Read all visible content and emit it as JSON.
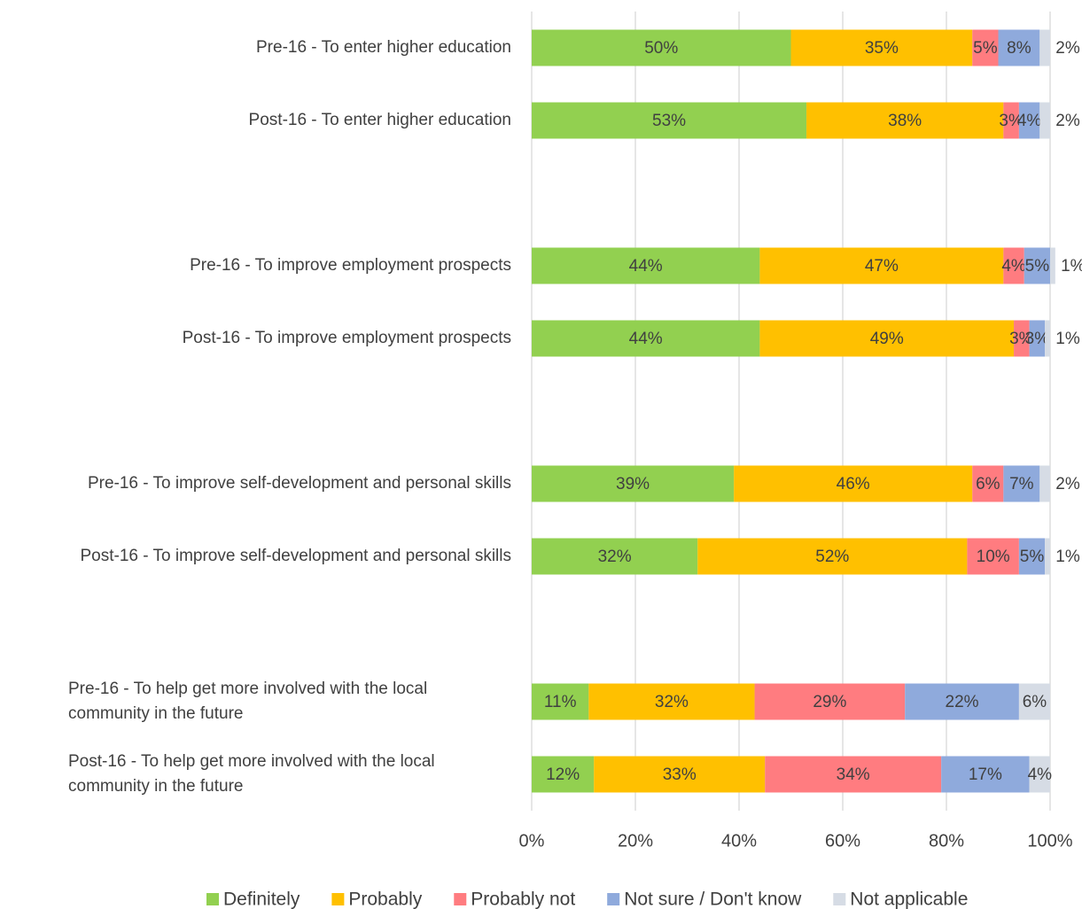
{
  "chart_data": {
    "type": "stacked-bar-horizontal",
    "categories": [
      "Pre-16 - To enter higher education",
      "Post-16 - To enter higher education",
      null,
      "Pre-16 - To improve employment prospects",
      "Post-16 - To improve employment prospects",
      null,
      "Pre-16 - To improve self-development and personal skills",
      "Post-16 - To improve self-development and personal skills",
      null,
      "Pre-16 - To help get more involved with the local community in the future",
      "Post-16 - To help get more involved with the local community in the future"
    ],
    "series": [
      {
        "name": "Definitely",
        "color": "#92d050",
        "values": [
          50,
          53,
          null,
          44,
          44,
          null,
          39,
          32,
          null,
          11,
          12
        ],
        "value_labels": [
          "50%",
          "53%",
          null,
          "44%",
          "44%",
          null,
          "39%",
          "32%",
          null,
          "11%",
          "12%"
        ]
      },
      {
        "name": "Probably",
        "color": "#ffc000",
        "values": [
          35,
          38,
          null,
          47,
          49,
          null,
          46,
          52,
          null,
          32,
          33
        ],
        "value_labels": [
          "35%",
          "38%",
          null,
          "47%",
          "49%",
          null,
          "46%",
          "52%",
          null,
          "32%",
          "33%"
        ]
      },
      {
        "name": "Probably not",
        "color": "#ff7c80",
        "values": [
          5,
          3,
          null,
          4,
          3,
          null,
          6,
          10,
          null,
          29,
          34
        ],
        "value_labels": [
          "5%",
          "3%",
          null,
          "4%",
          "3%",
          null,
          "6%",
          "10%",
          null,
          "29%",
          "34%"
        ]
      },
      {
        "name": "Not sure / Don't know",
        "color": "#8faadc",
        "values": [
          8,
          4,
          null,
          5,
          3,
          null,
          7,
          5,
          null,
          22,
          17
        ],
        "value_labels": [
          "8%",
          "4%",
          null,
          "5%",
          "3%",
          null,
          "7%",
          "5%",
          null,
          "22%",
          "17%"
        ]
      },
      {
        "name": "Not applicable",
        "color": "#d6dce5",
        "values": [
          2,
          2,
          null,
          1,
          1,
          null,
          2,
          1,
          null,
          6,
          4
        ],
        "value_labels": [
          "2%",
          "2%",
          null,
          "1%",
          "1%",
          null,
          "2%",
          "1%",
          null,
          "6%",
          "4%"
        ]
      }
    ],
    "xlim": [
      0,
      100
    ],
    "xticks": [
      {
        "value": 0,
        "label": "0%"
      },
      {
        "value": 20,
        "label": "20%"
      },
      {
        "value": 40,
        "label": "40%"
      },
      {
        "value": 60,
        "label": "60%"
      },
      {
        "value": 80,
        "label": "80%"
      },
      {
        "value": 100,
        "label": "100%"
      }
    ],
    "grid": true,
    "legend": "bottom"
  }
}
